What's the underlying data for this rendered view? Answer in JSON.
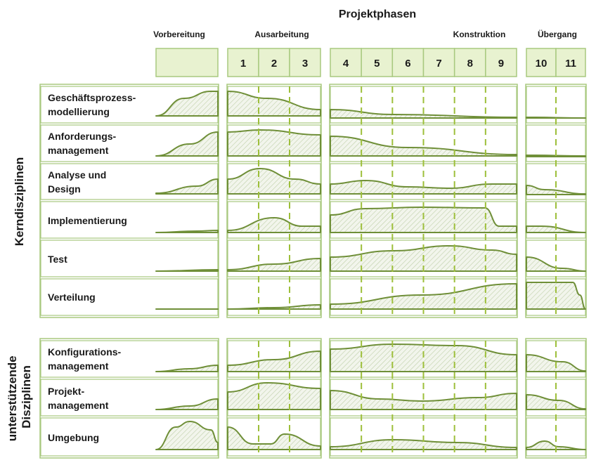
{
  "title": "Projektphasen",
  "phases": [
    {
      "name": "Vorbereitung",
      "iterations": [
        ""
      ]
    },
    {
      "name": "Ausarbeitung",
      "iterations": [
        "1",
        "2",
        "3"
      ]
    },
    {
      "name": "Konstruktion",
      "iterations": [
        "4",
        "5",
        "6",
        "7",
        "8",
        "9"
      ]
    },
    {
      "name": "Übergang",
      "iterations": [
        "10",
        "11"
      ]
    }
  ],
  "groups": [
    {
      "name": "Kerndisziplinen",
      "disciplines": [
        {
          "label": "Geschäftsprozess-\nmodellierung"
        },
        {
          "label": "Anforderungs-\nmanagement"
        },
        {
          "label": "Analyse und\nDesign"
        },
        {
          "label": "Implementierung"
        },
        {
          "label": "Test"
        },
        {
          "label": "Verteilung"
        }
      ]
    },
    {
      "name": "unterstützende\nDisziplinen",
      "disciplines": [
        {
          "label": "Konfigurations-\nmanagement"
        },
        {
          "label": "Projekt-\nmanagement"
        },
        {
          "label": "Umgebung"
        }
      ]
    }
  ],
  "colors": {
    "fill": "#e8f2d0",
    "border": "#a8c97f",
    "curve": "#6f8f38",
    "dashed": "#9dbf3a",
    "hatch": "#b9c9a0"
  }
}
